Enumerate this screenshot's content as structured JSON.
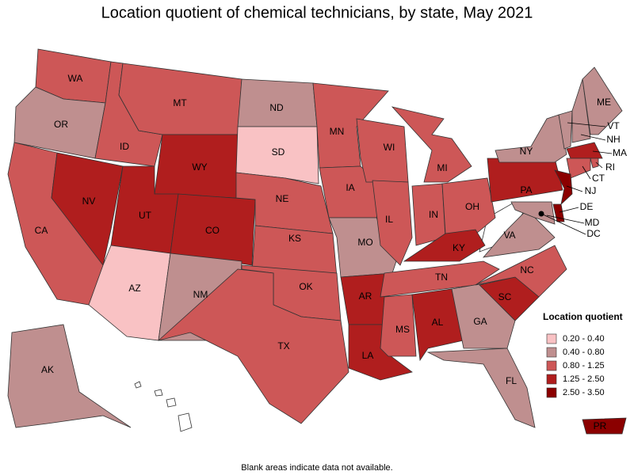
{
  "title": "Location quotient of chemical technicians, by state, May 2021",
  "note": "Blank areas indicate data not available.",
  "legend": {
    "title": "Location quotient",
    "items": [
      {
        "label": "0.20 - 0.40",
        "color": "#f9c2c4"
      },
      {
        "label": "0.40 - 0.80",
        "color": "#bf8f8f"
      },
      {
        "label": "0.80 - 1.25",
        "color": "#cd5757"
      },
      {
        "label": "1.25 - 2.50",
        "color": "#b01e1e"
      },
      {
        "label": "2.50 - 3.50",
        "color": "#8b0000"
      }
    ]
  },
  "states": [
    {
      "abbr": "WA",
      "class": 2
    },
    {
      "abbr": "OR",
      "class": 1
    },
    {
      "abbr": "CA",
      "class": 2
    },
    {
      "abbr": "NV",
      "class": 3
    },
    {
      "abbr": "ID",
      "class": 2
    },
    {
      "abbr": "MT",
      "class": 2
    },
    {
      "abbr": "WY",
      "class": 3
    },
    {
      "abbr": "UT",
      "class": 3
    },
    {
      "abbr": "CO",
      "class": 3
    },
    {
      "abbr": "AZ",
      "class": 0
    },
    {
      "abbr": "NM",
      "class": 1
    },
    {
      "abbr": "ND",
      "class": 1
    },
    {
      "abbr": "SD",
      "class": 0
    },
    {
      "abbr": "NE",
      "class": 2
    },
    {
      "abbr": "KS",
      "class": 2
    },
    {
      "abbr": "OK",
      "class": 2
    },
    {
      "abbr": "TX",
      "class": 2
    },
    {
      "abbr": "MN",
      "class": 2
    },
    {
      "abbr": "IA",
      "class": 2
    },
    {
      "abbr": "MO",
      "class": 1
    },
    {
      "abbr": "AR",
      "class": 3
    },
    {
      "abbr": "LA",
      "class": 3
    },
    {
      "abbr": "WI",
      "class": 2
    },
    {
      "abbr": "IL",
      "class": 2
    },
    {
      "abbr": "MI",
      "class": 2
    },
    {
      "abbr": "IN",
      "class": 2
    },
    {
      "abbr": "OH",
      "class": 2
    },
    {
      "abbr": "KY",
      "class": 3
    },
    {
      "abbr": "TN",
      "class": 2
    },
    {
      "abbr": "MS",
      "class": 2
    },
    {
      "abbr": "AL",
      "class": 3
    },
    {
      "abbr": "GA",
      "class": 1
    },
    {
      "abbr": "FL",
      "class": 1
    },
    {
      "abbr": "SC",
      "class": 3
    },
    {
      "abbr": "NC",
      "class": 2
    },
    {
      "abbr": "VA",
      "class": 1
    },
    {
      "abbr": "PA",
      "class": 3
    },
    {
      "abbr": "NY",
      "class": 1
    },
    {
      "abbr": "VT",
      "class": 1
    },
    {
      "abbr": "NH",
      "class": 1
    },
    {
      "abbr": "ME",
      "class": 1
    },
    {
      "abbr": "MA",
      "class": 3
    },
    {
      "abbr": "RI",
      "class": 2
    },
    {
      "abbr": "CT",
      "class": 2
    },
    {
      "abbr": "NJ",
      "class": 4
    },
    {
      "abbr": "DE",
      "class": 4
    },
    {
      "abbr": "MD",
      "class": 1
    },
    {
      "abbr": "DC",
      "class": 4
    },
    {
      "abbr": "AK",
      "class": 1
    },
    {
      "abbr": "PR",
      "class": 4
    }
  ]
}
